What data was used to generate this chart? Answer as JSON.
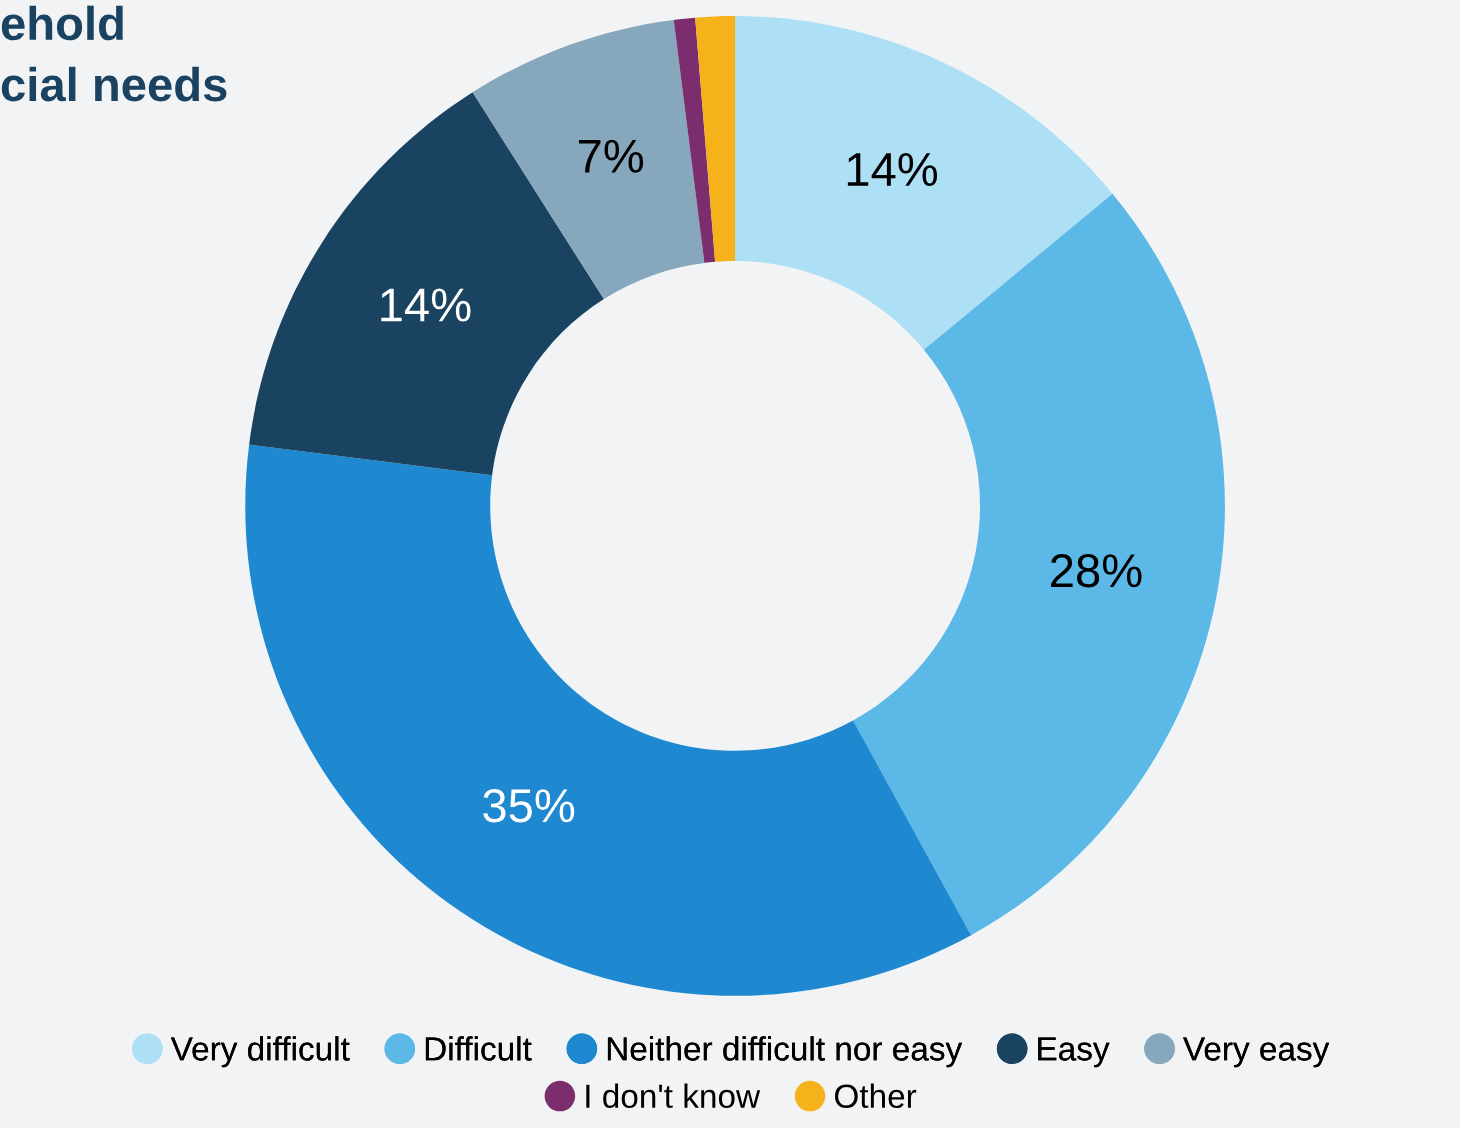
{
  "chart_data": {
    "type": "donut",
    "title": "ehold\ncial needs",
    "categories": [
      "Very difficult",
      "Difficult",
      "Neither difficult nor easy",
      "Easy",
      "Very easy",
      "I don't know",
      "Other"
    ],
    "values": [
      14,
      28,
      35,
      14,
      7,
      0.7,
      1.3
    ],
    "value_labels": [
      "14%",
      "28%",
      "35%",
      "14%",
      "7%",
      null,
      null
    ],
    "colors": [
      "#addff5",
      "#5cb8e6",
      "#1e88d0",
      "#1a4361",
      "#87a7bc",
      "#7b2d6e",
      "#f5b21a"
    ],
    "legend": "bottom"
  }
}
